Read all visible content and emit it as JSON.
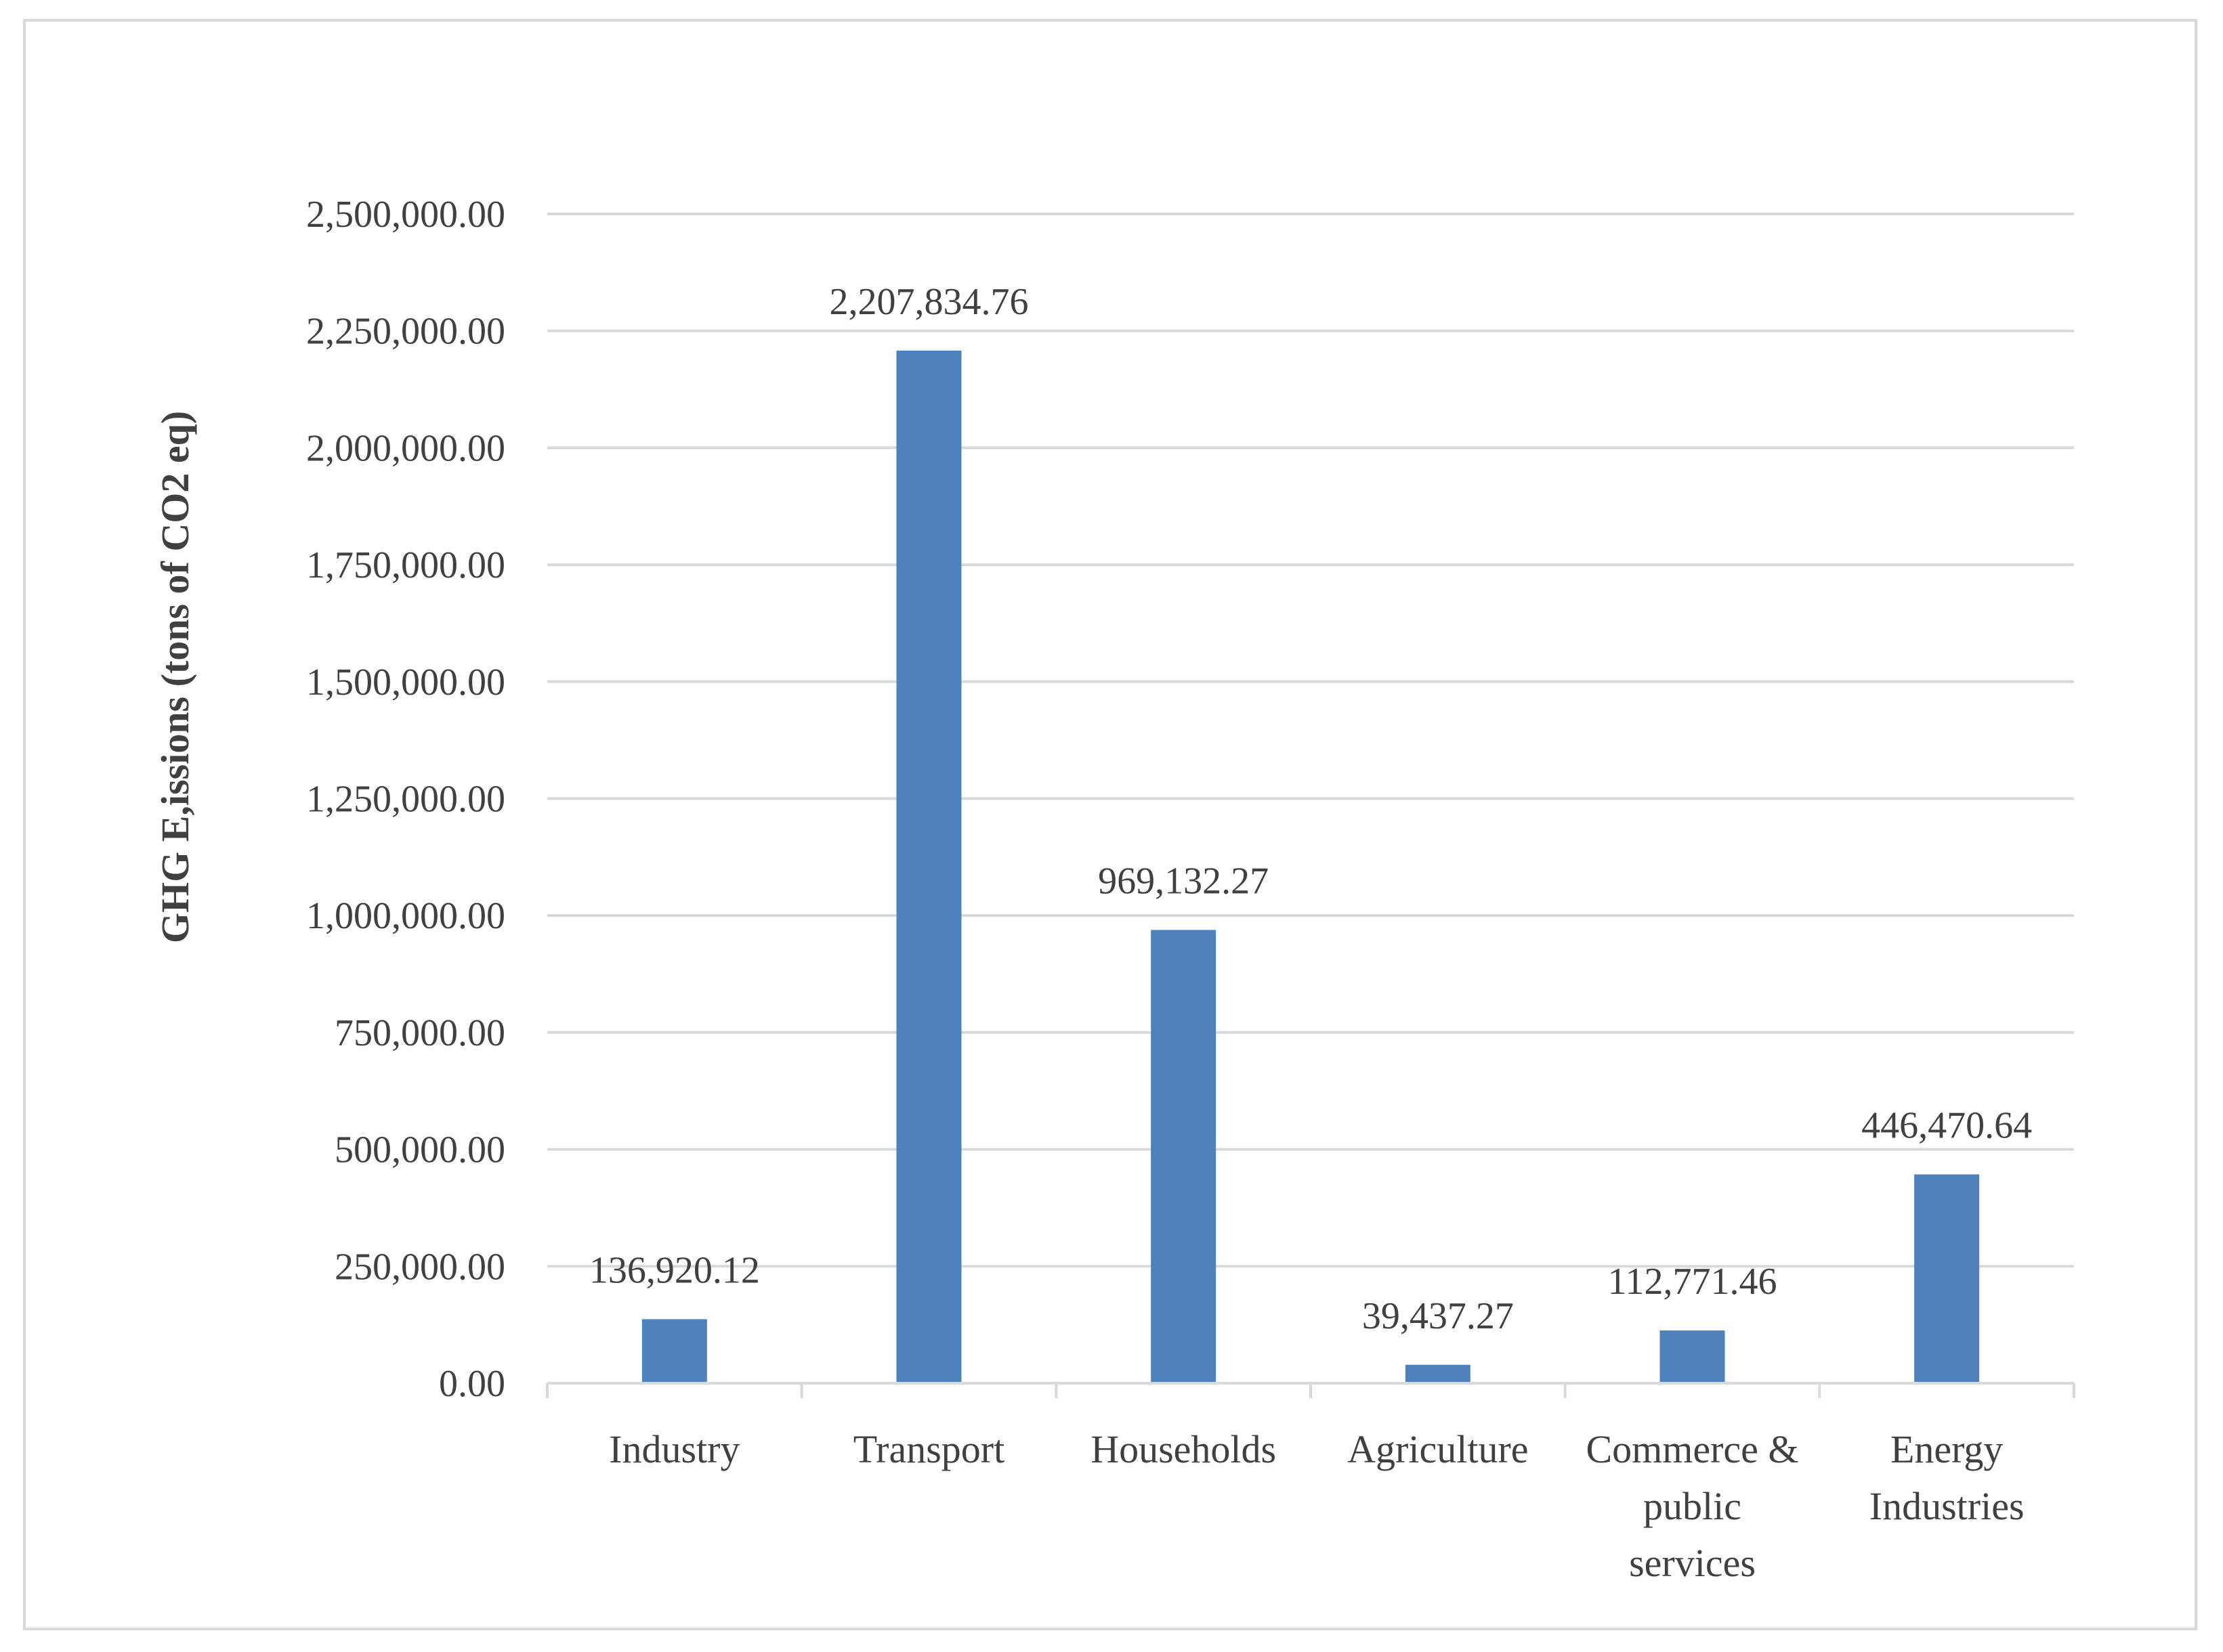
{
  "chart_data": {
    "type": "bar",
    "title": "",
    "xlabel": "",
    "ylabel": "GHG E,issions (tons of CO2 eq)",
    "categories": [
      [
        "Industry"
      ],
      [
        "Transport"
      ],
      [
        "Households"
      ],
      [
        "Agriculture"
      ],
      [
        "Commerce &",
        "public",
        "services"
      ],
      [
        "Energy",
        "Industries"
      ]
    ],
    "values": [
      136920.12,
      2207834.76,
      969132.27,
      39437.27,
      112771.46,
      446470.64
    ],
    "value_labels": [
      "136,920.12",
      "2,207,834.76",
      "969,132.27",
      "39,437.27",
      "112,771.46",
      "446,470.64"
    ],
    "ylim": [
      0,
      2500000
    ],
    "yticks": [
      0,
      250000,
      500000,
      750000,
      1000000,
      1250000,
      1500000,
      1750000,
      2000000,
      2250000,
      2500000
    ],
    "ytick_labels": [
      "0.00",
      "250,000.00",
      "500,000.00",
      "750,000.00",
      "1,000,000.00",
      "1,250,000.00",
      "1,500,000.00",
      "1,750,000.00",
      "2,000,000.00",
      "2,250,000.00",
      "2,500,000.00"
    ],
    "grid": true,
    "legend": "none",
    "bar_color": "#4f81bd",
    "grid_color": "#d9d9d9"
  }
}
